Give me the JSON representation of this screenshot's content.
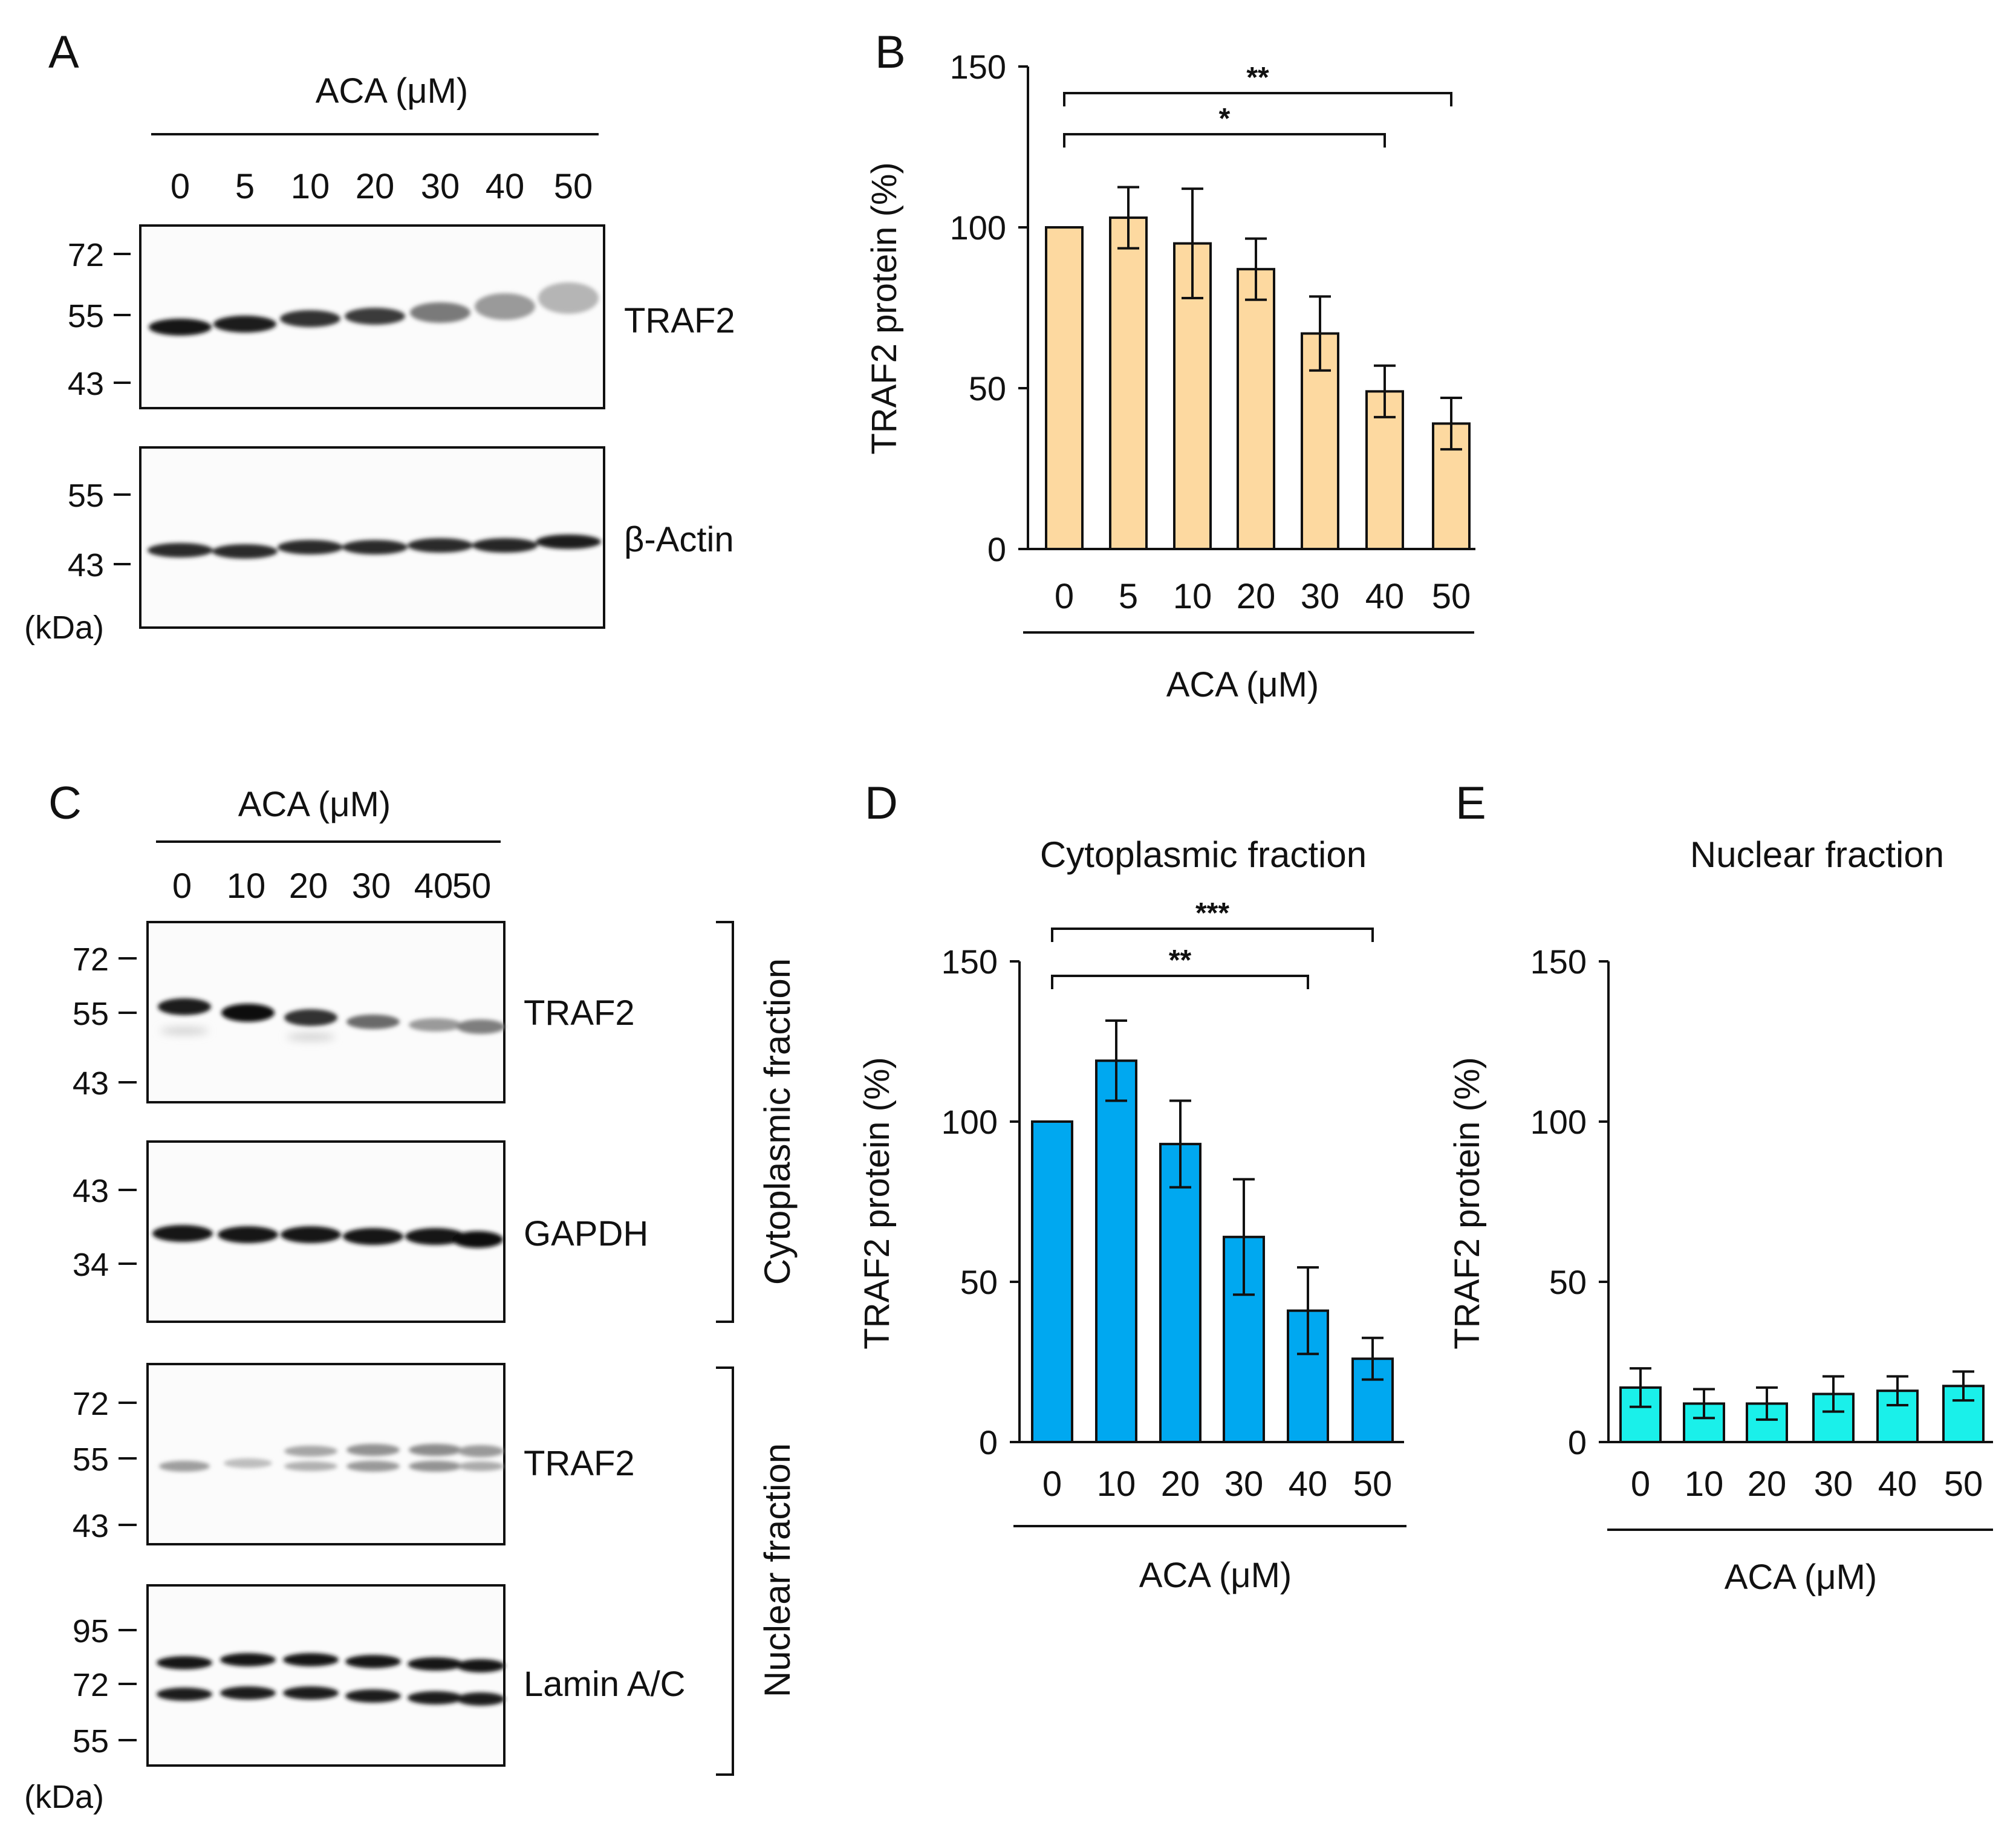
{
  "panels": {
    "A": {
      "letter": "A",
      "conc_header": "ACA (μM)",
      "lanes": [
        "0",
        "5",
        "10",
        "20",
        "30",
        "40",
        "50"
      ],
      "blots": [
        {
          "protein": "TRAF2",
          "markers": [
            "72",
            "55",
            "43"
          ]
        },
        {
          "protein": "β-Actin",
          "markers": [
            "55",
            "43"
          ]
        }
      ],
      "unit": "(kDa)"
    },
    "C": {
      "letter": "C",
      "conc_header": "ACA (μM)",
      "lanes": [
        "0",
        "10",
        "20",
        "30",
        "40",
        "50"
      ],
      "blots": [
        {
          "protein": "TRAF2",
          "markers": [
            "72",
            "55",
            "43"
          ]
        },
        {
          "protein": "GAPDH",
          "markers": [
            "43",
            "34"
          ]
        },
        {
          "protein": "TRAF2",
          "markers": [
            "72",
            "55",
            "43"
          ]
        },
        {
          "protein": "Lamin A/C",
          "markers": [
            "95",
            "72",
            "55"
          ]
        }
      ],
      "fraction_labels": [
        "Cytoplasmic fraction",
        "Nuclear fraction"
      ],
      "unit": "(kDa)"
    }
  },
  "chart_data": [
    {
      "panel": "B",
      "type": "bar",
      "title": "",
      "xlabel": "ACA (μM)",
      "ylabel": "TRAF2 protein (%)",
      "categories": [
        "0",
        "5",
        "10",
        "20",
        "30",
        "40",
        "50"
      ],
      "values": [
        100,
        103,
        95,
        87,
        67,
        49,
        39
      ],
      "errors": [
        0,
        9.5,
        17,
        9.5,
        11.5,
        8,
        8
      ],
      "ylim": [
        0,
        150
      ],
      "yticks": [
        "0",
        "50",
        "100",
        "150"
      ],
      "color": "#FDD9A0",
      "significance": [
        {
          "from": "0",
          "to": "50",
          "label": "**"
        },
        {
          "from": "0",
          "to": "40",
          "label": "*"
        }
      ]
    },
    {
      "panel": "D",
      "type": "bar",
      "title": "Cytoplasmic fraction",
      "xlabel": "ACA (μM)",
      "ylabel": "TRAF2 protein (%)",
      "categories": [
        "0",
        "10",
        "20",
        "30",
        "40",
        "50"
      ],
      "values": [
        100,
        119,
        93,
        64,
        41,
        26
      ],
      "errors": [
        0,
        12.5,
        13.5,
        18,
        13.5,
        6.5
      ],
      "ylim": [
        0,
        150
      ],
      "yticks": [
        "0",
        "50",
        "100",
        "150"
      ],
      "color": "#00A8F0",
      "significance": [
        {
          "from": "0",
          "to": "50",
          "label": "***"
        },
        {
          "from": "0",
          "to": "40",
          "label": "**"
        }
      ]
    },
    {
      "panel": "E",
      "type": "bar",
      "title": "Nuclear fraction",
      "xlabel": "ACA (μM)",
      "ylabel": "TRAF2 protein (%)",
      "categories": [
        "0",
        "10",
        "20",
        "30",
        "40",
        "50"
      ],
      "values": [
        17,
        12,
        12,
        15,
        16,
        17.5
      ],
      "errors": [
        6,
        4.5,
        5,
        5.5,
        4.5,
        4.5
      ],
      "ylim": [
        0,
        150
      ],
      "yticks": [
        "0",
        "50",
        "100",
        "150"
      ],
      "color": "#1AF0EA",
      "significance": []
    }
  ]
}
